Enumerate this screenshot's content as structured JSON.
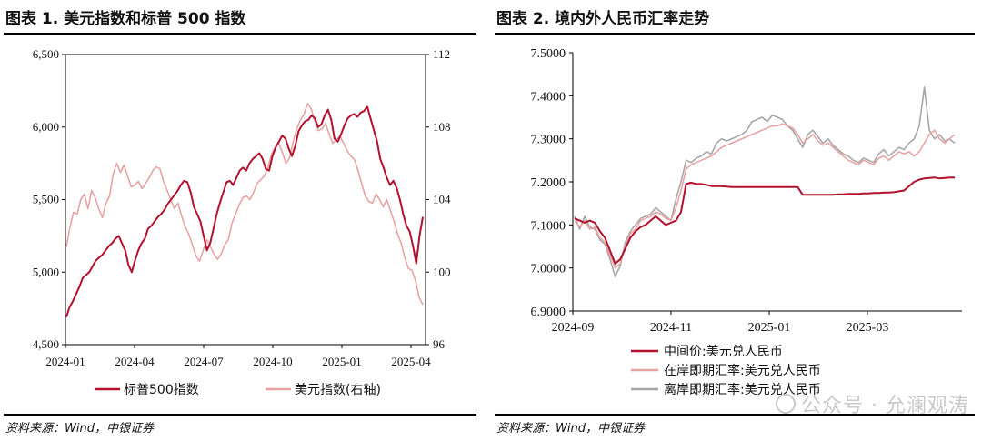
{
  "figures": {
    "left_title": "图表 1. 美元指数和标普 500 指数",
    "right_title": "图表 2. 境内外人民币汇率走势",
    "left_source": "资料来源：Wind，中银证券",
    "right_source": "资料来源：Wind，中银证券",
    "watermark": "公众号 · 允澜观涛"
  },
  "colors": {
    "dark_red": "#b3112e",
    "pink": "#e8a4a4",
    "gray": "#a8a8a8",
    "axis": "#000000"
  },
  "chart_data": [
    {
      "type": "line",
      "title": "图表 1. 美元指数和标普 500 指数",
      "x_ticks": [
        "2024-01",
        "2024-04",
        "2024-07",
        "2024-10",
        "2025-01",
        "2025-04"
      ],
      "y_left_ticks": [
        "4,500",
        "5,000",
        "5,500",
        "6,000",
        "6,500"
      ],
      "y_left_range": [
        4500,
        6500
      ],
      "y_right_ticks": [
        "96",
        "100",
        "104",
        "108",
        "112"
      ],
      "y_right_range": [
        96,
        112
      ],
      "series": [
        {
          "name": "标普500指数",
          "axis": "left",
          "color": "#b3112e",
          "values": [
            4690,
            4760,
            4800,
            4850,
            4900,
            4960,
            4980,
            5000,
            5040,
            5080,
            5100,
            5120,
            5150,
            5180,
            5200,
            5230,
            5250,
            5200,
            5150,
            5050,
            5000,
            5080,
            5150,
            5200,
            5230,
            5300,
            5320,
            5350,
            5380,
            5400,
            5430,
            5470,
            5500,
            5530,
            5560,
            5600,
            5630,
            5620,
            5550,
            5450,
            5400,
            5350,
            5250,
            5150,
            5200,
            5300,
            5400,
            5480,
            5550,
            5620,
            5630,
            5600,
            5650,
            5700,
            5720,
            5700,
            5750,
            5780,
            5800,
            5820,
            5780,
            5710,
            5700,
            5800,
            5860,
            5900,
            5940,
            5920,
            5850,
            5800,
            5870,
            5970,
            6010,
            6040,
            6050,
            6080,
            6060,
            6000,
            6020,
            6080,
            6120,
            6050,
            5920,
            5900,
            5950,
            6010,
            6060,
            6080,
            6090,
            6070,
            6100,
            6110,
            6140,
            6060,
            5980,
            5900,
            5780,
            5720,
            5650,
            5600,
            5630,
            5580,
            5500,
            5400,
            5320,
            5280,
            5180,
            5060,
            5250,
            5380
          ]
        },
        {
          "name": "美元指数(右轴)",
          "axis": "right",
          "color": "#e8a4a4",
          "values": [
            101.4,
            102.5,
            103.3,
            103.2,
            104.0,
            104.3,
            103.5,
            104.5,
            104.1,
            103.5,
            103.0,
            103.8,
            104.2,
            105.4,
            106.0,
            105.5,
            105.9,
            105.3,
            104.7,
            104.8,
            105.0,
            104.6,
            104.9,
            105.2,
            105.6,
            105.8,
            105.7,
            105.0,
            104.5,
            104.0,
            103.5,
            103.8,
            103.1,
            102.5,
            102.1,
            101.5,
            100.9,
            100.6,
            101.2,
            101.8,
            101.4,
            101.0,
            100.7,
            101.0,
            101.5,
            101.8,
            102.7,
            103.2,
            103.7,
            104.1,
            104.2,
            104.0,
            104.4,
            104.9,
            105.1,
            105.3,
            105.8,
            106.5,
            106.9,
            107.1,
            106.6,
            106.0,
            106.3,
            107.2,
            107.9,
            108.4,
            108.7,
            109.3,
            109.0,
            108.3,
            107.8,
            107.9,
            108.2,
            107.6,
            107.1,
            107.3,
            107.5,
            107.1,
            106.7,
            106.4,
            106.2,
            105.6,
            104.9,
            104.2,
            103.9,
            103.8,
            104.3,
            104.0,
            103.6,
            104.0,
            103.4,
            102.8,
            102.1,
            101.6,
            100.8,
            100.2,
            100.1,
            99.5,
            98.6,
            98.2
          ]
        }
      ]
    },
    {
      "type": "line",
      "title": "图表 2. 境内外人民币汇率走势",
      "x_ticks": [
        "2024-09",
        "2024-11",
        "2025-01",
        "2025-03"
      ],
      "y_ticks": [
        "6.9000",
        "7.0000",
        "7.1000",
        "7.2000",
        "7.3000",
        "7.4000",
        "7.5000"
      ],
      "y_range": [
        6.9,
        7.5
      ],
      "series": [
        {
          "name": "中间价:美元兑人民币",
          "color": "#b3112e",
          "values": [
            7.115,
            7.11,
            7.105,
            7.11,
            7.105,
            7.085,
            7.07,
            7.04,
            7.01,
            7.02,
            7.045,
            7.07,
            7.085,
            7.095,
            7.1,
            7.11,
            7.12,
            7.11,
            7.1,
            7.105,
            7.11,
            7.13,
            7.195,
            7.198,
            7.195,
            7.195,
            7.193,
            7.19,
            7.19,
            7.19,
            7.189,
            7.188,
            7.188,
            7.188,
            7.188,
            7.188,
            7.188,
            7.188,
            7.188,
            7.188,
            7.188,
            7.188,
            7.188,
            7.188,
            7.188,
            7.17,
            7.17,
            7.17,
            7.17,
            7.17,
            7.17,
            7.17,
            7.171,
            7.171,
            7.172,
            7.172,
            7.172,
            7.173,
            7.173,
            7.174,
            7.174,
            7.175,
            7.175,
            7.176,
            7.178,
            7.18,
            7.19,
            7.2,
            7.205,
            7.208,
            7.209,
            7.21,
            7.208,
            7.209,
            7.21,
            7.21
          ]
        },
        {
          "name": "在岸即期汇率:美元兑人民币",
          "color": "#e8a4a4",
          "values": [
            7.11,
            7.095,
            7.11,
            7.09,
            7.095,
            7.07,
            7.06,
            7.03,
            7.0,
            7.01,
            7.05,
            7.08,
            7.09,
            7.11,
            7.115,
            7.12,
            7.13,
            7.125,
            7.115,
            7.11,
            7.14,
            7.18,
            7.23,
            7.24,
            7.245,
            7.25,
            7.255,
            7.26,
            7.27,
            7.28,
            7.285,
            7.29,
            7.295,
            7.3,
            7.305,
            7.31,
            7.315,
            7.32,
            7.325,
            7.33,
            7.33,
            7.335,
            7.33,
            7.325,
            7.31,
            7.29,
            7.3,
            7.31,
            7.295,
            7.285,
            7.29,
            7.28,
            7.27,
            7.26,
            7.25,
            7.245,
            7.24,
            7.25,
            7.245,
            7.24,
            7.255,
            7.26,
            7.25,
            7.26,
            7.27,
            7.265,
            7.27,
            7.26,
            7.27,
            7.29,
            7.31,
            7.32,
            7.3,
            7.29,
            7.3,
            7.31
          ]
        },
        {
          "name": "离岸即期汇率:美元兑人民币",
          "color": "#a8a8a8",
          "values": [
            7.12,
            7.09,
            7.12,
            7.095,
            7.09,
            7.065,
            7.055,
            7.02,
            6.98,
            7.005,
            7.06,
            7.085,
            7.1,
            7.115,
            7.12,
            7.125,
            7.14,
            7.13,
            7.12,
            7.11,
            7.16,
            7.2,
            7.25,
            7.245,
            7.255,
            7.26,
            7.27,
            7.265,
            7.29,
            7.3,
            7.295,
            7.3,
            7.305,
            7.31,
            7.32,
            7.34,
            7.345,
            7.35,
            7.34,
            7.355,
            7.35,
            7.345,
            7.33,
            7.32,
            7.3,
            7.28,
            7.31,
            7.32,
            7.305,
            7.29,
            7.3,
            7.285,
            7.275,
            7.265,
            7.26,
            7.25,
            7.245,
            7.255,
            7.25,
            7.245,
            7.265,
            7.275,
            7.26,
            7.27,
            7.28,
            7.275,
            7.29,
            7.3,
            7.33,
            7.42,
            7.32,
            7.3,
            7.31,
            7.295,
            7.3,
            7.29
          ]
        }
      ]
    }
  ]
}
